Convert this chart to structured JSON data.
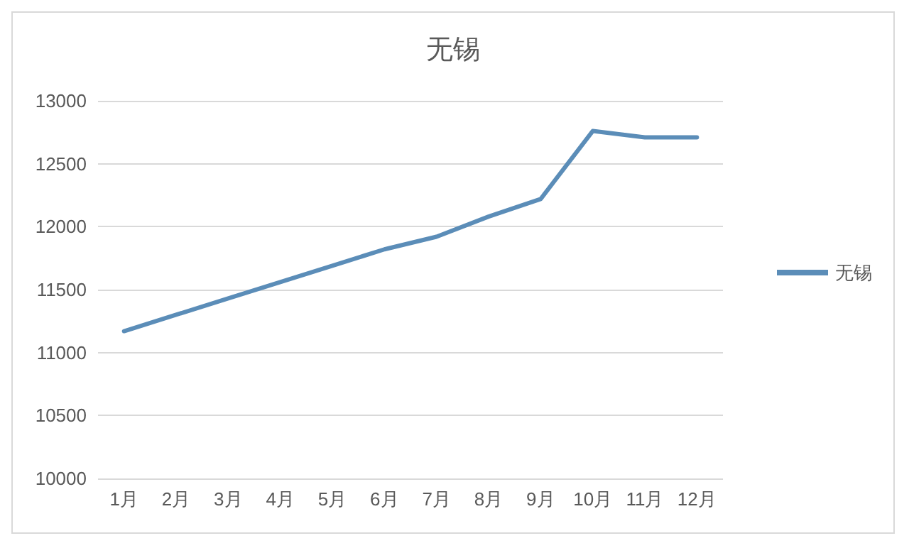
{
  "chart_data": {
    "type": "line",
    "title": "无锡",
    "categories": [
      "1月",
      "2月",
      "3月",
      "4月",
      "5月",
      "6月",
      "7月",
      "8月",
      "9月",
      "10月",
      "11月",
      "12月"
    ],
    "series": [
      {
        "name": "无锡",
        "color": "#5b8db8",
        "values": [
          11170,
          11300,
          11430,
          11560,
          11690,
          11820,
          11920,
          12080,
          12220,
          12760,
          12710,
          12710
        ]
      }
    ],
    "ylim": [
      10000,
      13000
    ],
    "yticks": [
      10000,
      10500,
      11000,
      11500,
      12000,
      12500,
      13000
    ],
    "grid": "y",
    "legend": "right",
    "marker": "none",
    "line_style": "solid"
  }
}
